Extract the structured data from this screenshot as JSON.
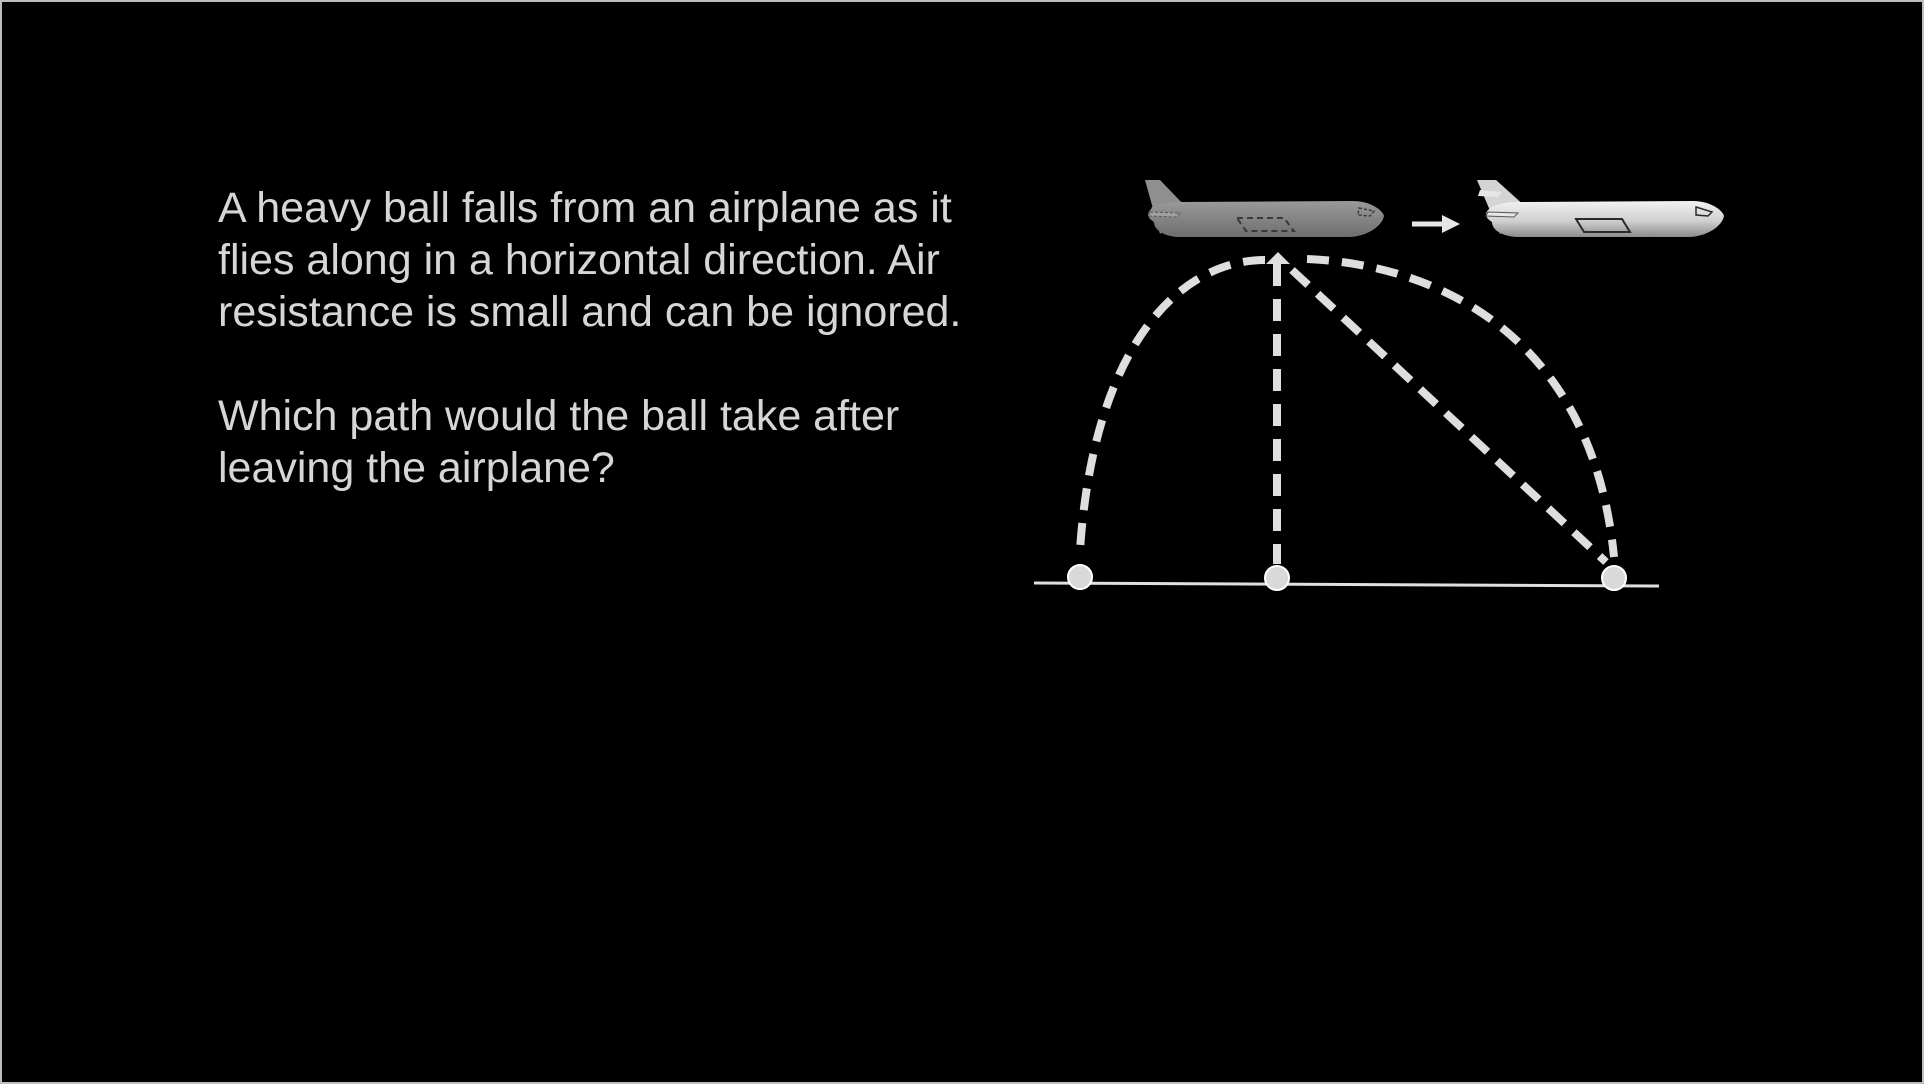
{
  "slide": {
    "paragraphs": [
      "A heavy ball falls from an airplane as it flies along in a horizontal direction. Air resistance is small and can be ignored.",
      "Which path would the ball take after leaving the airplane?"
    ]
  },
  "diagram": {
    "motion_direction": "right",
    "paths": [
      {
        "name": "curved-back",
        "style": "dashed"
      },
      {
        "name": "straight-down",
        "style": "dashed"
      },
      {
        "name": "straight-diagonal-forward",
        "style": "dashed"
      },
      {
        "name": "curved-forward",
        "style": "dashed"
      }
    ],
    "icons": [
      "airplane-faded-icon",
      "airplane-icon",
      "arrow-right-icon"
    ],
    "colors": {
      "background": "#000000",
      "text": "#d6d6d6",
      "lines": "#e0e0e0",
      "plane_faded": "#8a8a8a",
      "plane": "#d9d9d9"
    }
  }
}
